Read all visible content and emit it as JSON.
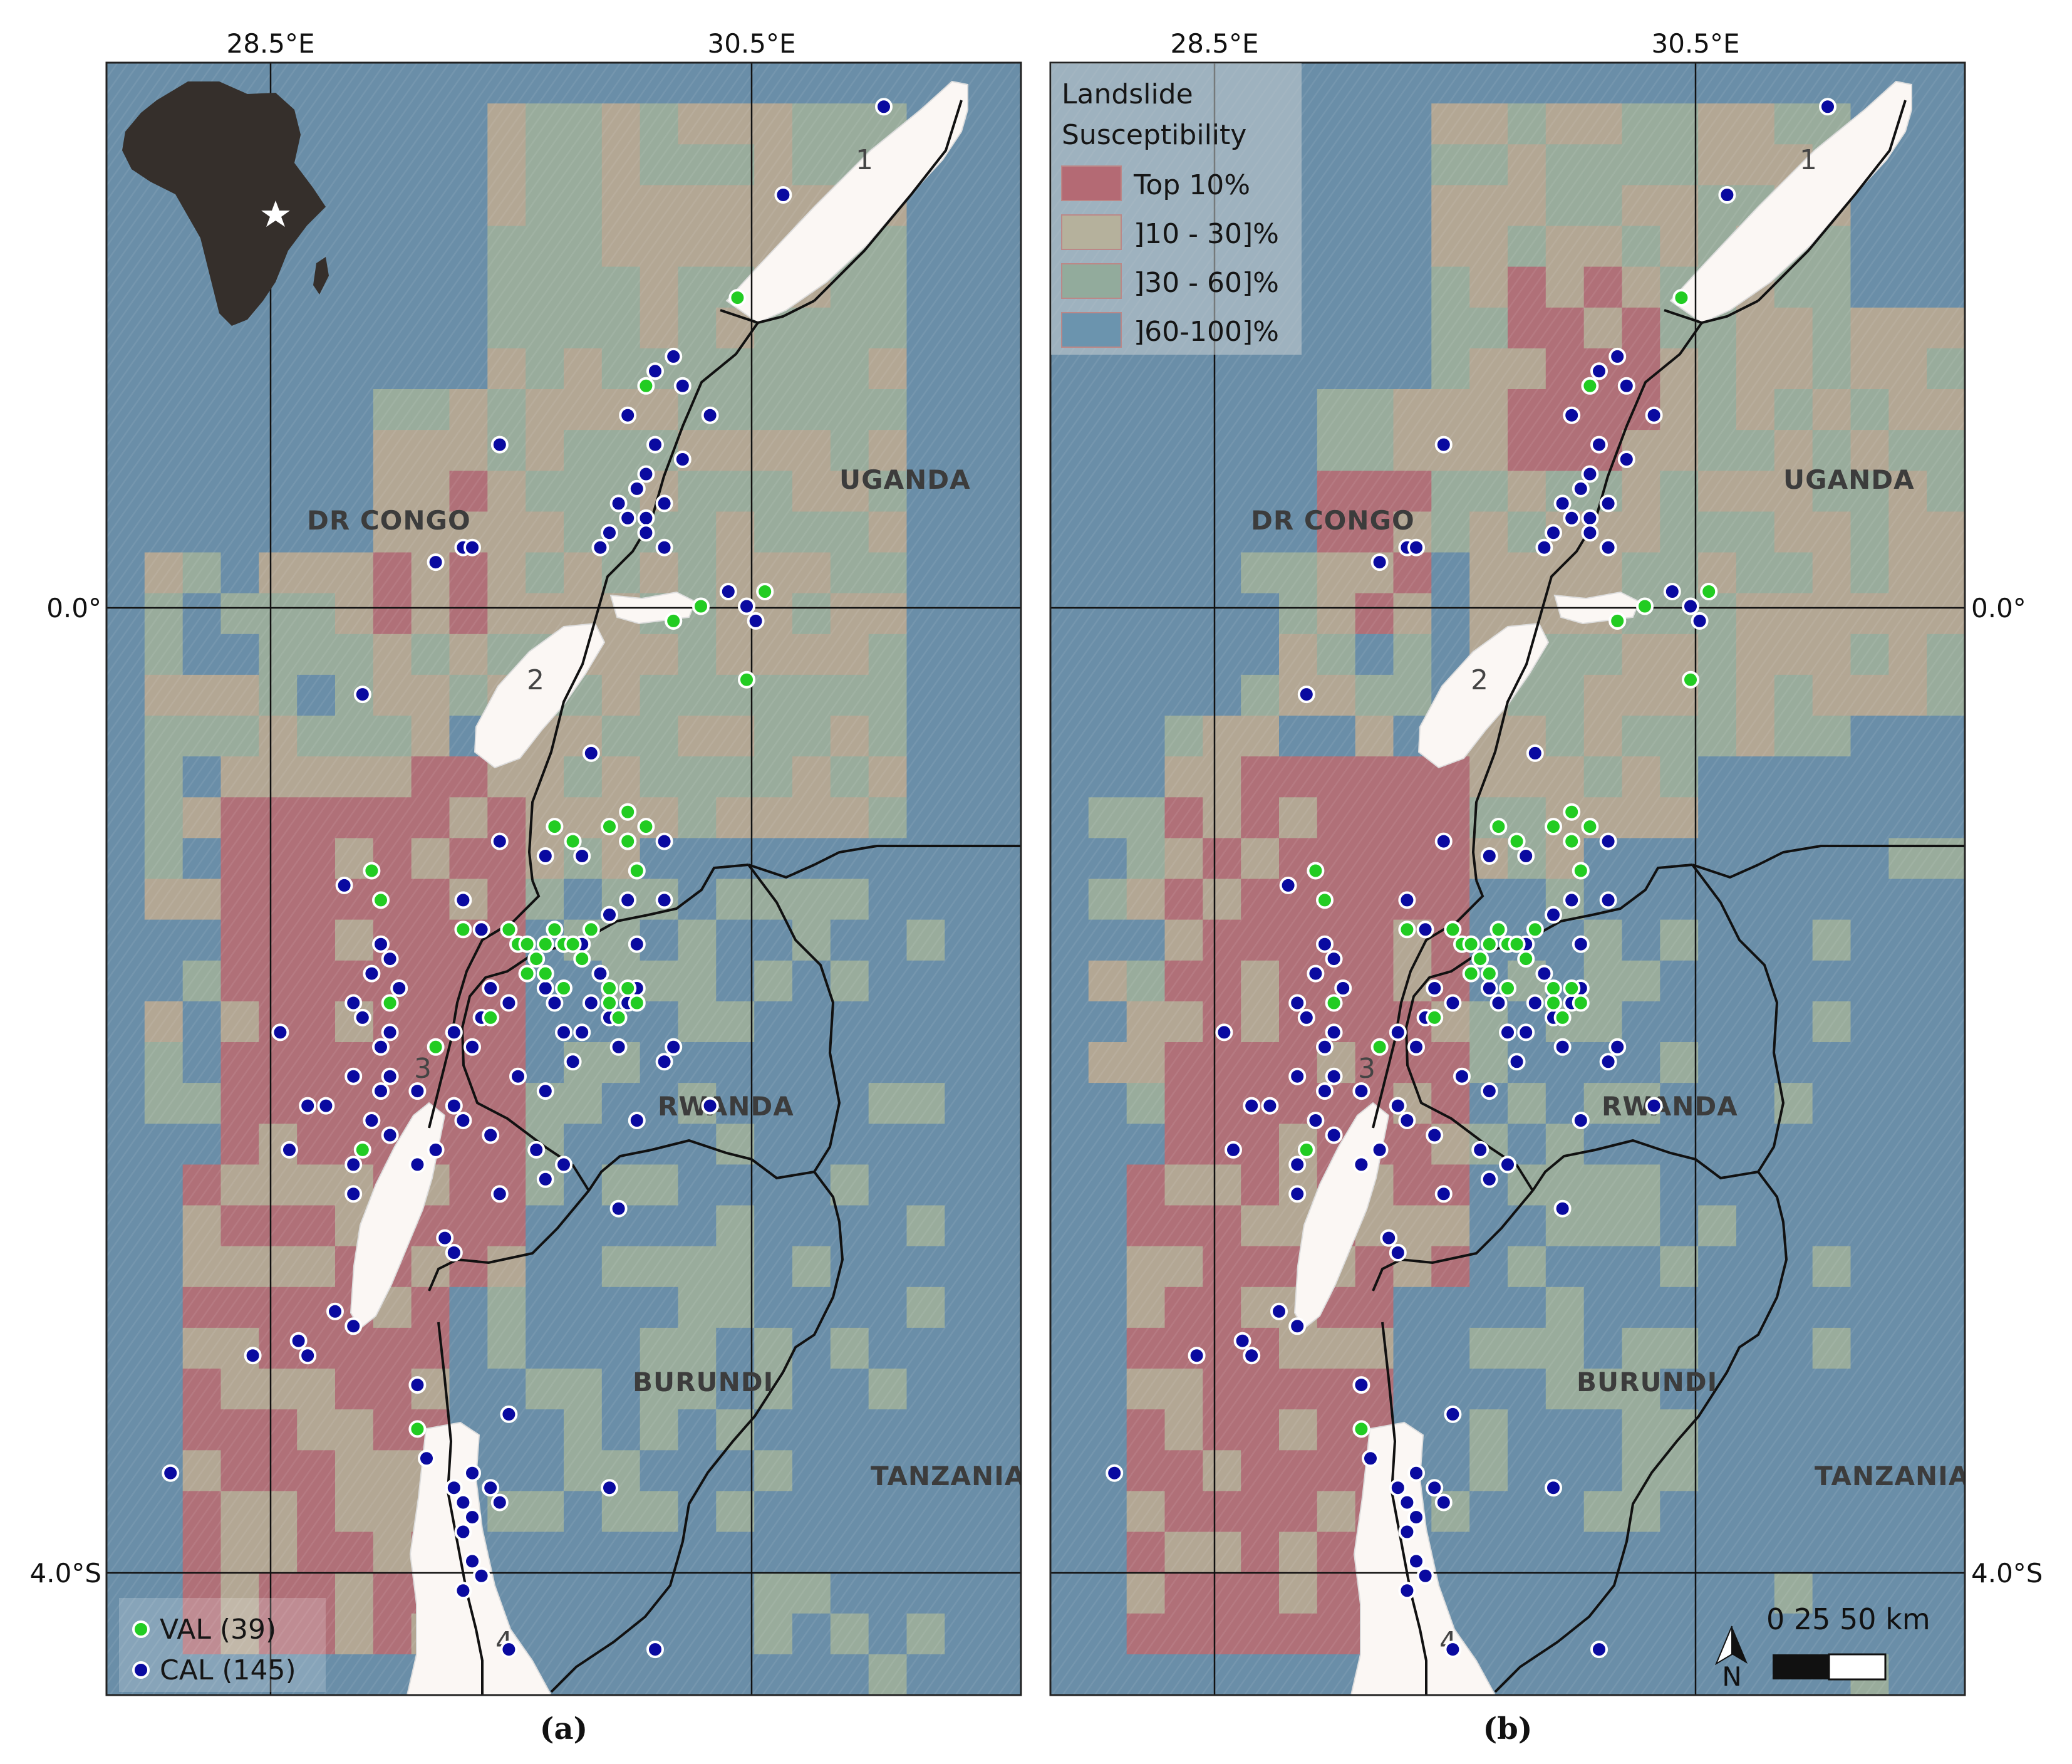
{
  "axes": {
    "lon_left": "28.5°E",
    "lon_right": "30.5°E",
    "lat_top": "0.0°",
    "lat_bottom": "4.0°S"
  },
  "countries": [
    "DR CONGO",
    "UGANDA",
    "RWANDA",
    "BURUNDI",
    "TANZANIA"
  ],
  "lakes": [
    "1",
    "2",
    "3",
    "4"
  ],
  "panel_a": {
    "caption": "(a)",
    "legend": [
      {
        "label": "VAL (39)",
        "color": "#22cc22"
      },
      {
        "label": "CAL (145)",
        "color": "#0a0aa0"
      }
    ]
  },
  "panel_b": {
    "caption": "(b)",
    "legend_title_1": "Landslide",
    "legend_title_2": "Susceptibility",
    "classes": [
      {
        "label": "Top 10%",
        "color": "#b46a74"
      },
      {
        "label": "]10 - 30]%",
        "color": "#b5b19c"
      },
      {
        "label": "]30 - 60]%",
        "color": "#92ab9c"
      },
      {
        "label": "]60-100]%",
        "color": "#6b94ae"
      }
    ],
    "north_label": "N",
    "scalebar_label": "0  25  50 km"
  },
  "colors": {
    "top10": "#b07078",
    "c10_30": "#b3a794",
    "c30_60": "#99ac9c",
    "c60_100": "#6a8ea8",
    "val_point": "#22cc22",
    "cal_point": "#0a0aa0",
    "lake": "#fbf7f4"
  }
}
